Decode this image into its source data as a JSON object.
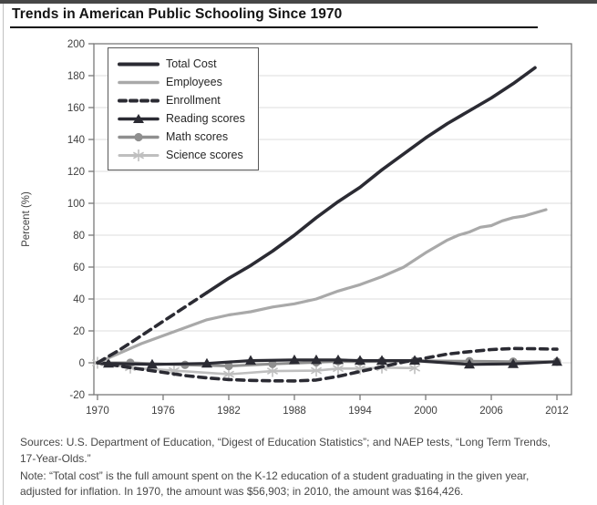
{
  "page": {
    "title": "Trends in American Public Schooling Since 1970",
    "sources": "Sources: U.S. Department of Education, “Digest of Education Statistics”; and NAEP tests, “Long Term Trends, 17-Year-Olds.”",
    "note": "Note: “Total cost” is the full amount spent on the K-12 education of a student graduating in the given year, adjusted for inflation. In 1970, the amount was $56,903; in 2010, the amount was $164,426."
  },
  "colors": {
    "dark_line": "#2b2b33",
    "employees_gray": "#a9a9a9",
    "math_gray": "#8f8f8f",
    "science_light": "#bfbfbf",
    "grid": "#dcdcdc",
    "frame": "#7a7a7a",
    "tick_text": "#3f3f3f",
    "top_strip": "#474747"
  },
  "chart_data": {
    "type": "line",
    "title": "",
    "xlabel": "",
    "ylabel": "Percent (%)",
    "ylim": [
      -20,
      200
    ],
    "xlim": [
      1969.67,
      2013.33
    ],
    "yticks": [
      200,
      180,
      160,
      140,
      120,
      100,
      80,
      60,
      40,
      20,
      0,
      -20
    ],
    "xticks": [
      1970,
      1976,
      1982,
      1988,
      1994,
      2000,
      2006,
      2012
    ],
    "grid": "horizontal-only",
    "legend_position": "top-left-inside",
    "series": [
      {
        "name": "Total Cost",
        "style": "mixed-dash-then-solid",
        "dash_until": 1980,
        "color": "#2b2b33",
        "width": 3.6,
        "marker": "none",
        "x": [
          1970,
          1972,
          1974,
          1976,
          1978,
          1980,
          1982,
          1984,
          1986,
          1988,
          1990,
          1992,
          1994,
          1996,
          1998,
          2000,
          2002,
          2004,
          2006,
          2008,
          2010
        ],
        "y": [
          0,
          8,
          17,
          26,
          35,
          44,
          53,
          61,
          70,
          80,
          91,
          101,
          110,
          121,
          131,
          141,
          150,
          158,
          166,
          175,
          185
        ]
      },
      {
        "name": "Employees",
        "style": "solid",
        "color": "#a9a9a9",
        "width": 3.2,
        "marker": "none",
        "x": [
          1970,
          1972,
          1974,
          1976,
          1978,
          1980,
          1982,
          1984,
          1986,
          1988,
          1990,
          1992,
          1994,
          1996,
          1998,
          2000,
          2001,
          2002,
          2003,
          2004,
          2005,
          2006,
          2007,
          2008,
          2009,
          2010,
          2011
        ],
        "y": [
          0,
          6,
          12,
          17,
          22,
          27,
          30,
          32,
          35,
          37,
          40,
          45,
          49,
          54,
          60,
          69,
          73,
          77,
          80,
          82,
          85,
          86,
          89,
          91,
          92,
          94,
          96
        ]
      },
      {
        "name": "Enrollment",
        "style": "dashed",
        "color": "#2b2b33",
        "width": 3.6,
        "marker": "none",
        "x": [
          1970,
          1972,
          1974,
          1976,
          1978,
          1980,
          1982,
          1984,
          1986,
          1988,
          1990,
          1992,
          1994,
          1996,
          1998,
          2000,
          2002,
          2004,
          2006,
          2008,
          2010,
          2012
        ],
        "y": [
          0,
          -2,
          -4,
          -6,
          -8,
          -9.5,
          -10.5,
          -11,
          -11.3,
          -11.4,
          -10.8,
          -8.5,
          -5.5,
          -2.5,
          0.5,
          3,
          5.5,
          7,
          8.3,
          9,
          8.8,
          8.5
        ]
      },
      {
        "name": "Reading scores",
        "style": "solid",
        "color": "#2b2b33",
        "width": 3.2,
        "marker": "triangle",
        "marker_points": "skip-first",
        "x": [
          1970,
          1971,
          1975,
          1980,
          1984,
          1988,
          1990,
          1992,
          1994,
          1996,
          1999,
          2004,
          2008,
          2012
        ],
        "y": [
          0,
          -0.4,
          -1,
          -0.4,
          1.4,
          1.8,
          1.8,
          1.8,
          1.4,
          1.4,
          1.4,
          -1,
          -0.7,
          0.7
        ]
      },
      {
        "name": "Math scores",
        "style": "solid",
        "color": "#8f8f8f",
        "width": 3.0,
        "marker": "circle",
        "marker_points": "skip-first",
        "x": [
          1970,
          1973,
          1978,
          1982,
          1986,
          1990,
          1992,
          1994,
          1996,
          1999,
          2004,
          2008,
          2012
        ],
        "y": [
          0,
          0,
          -1.3,
          -2,
          -0.7,
          0.3,
          1,
          0.7,
          1,
          1.3,
          1,
          0.7,
          0.7
        ]
      },
      {
        "name": "Science scores",
        "style": "solid",
        "color": "#bfbfbf",
        "width": 2.6,
        "marker": "asterisk",
        "marker_points": "all",
        "x": [
          1970,
          1973,
          1977,
          1982,
          1986,
          1990,
          1992,
          1994,
          1996,
          1999
        ],
        "y": [
          0,
          -3,
          -4.9,
          -7.2,
          -5.2,
          -4.9,
          -3.6,
          -3.6,
          -3,
          -3.3
        ]
      }
    ]
  }
}
